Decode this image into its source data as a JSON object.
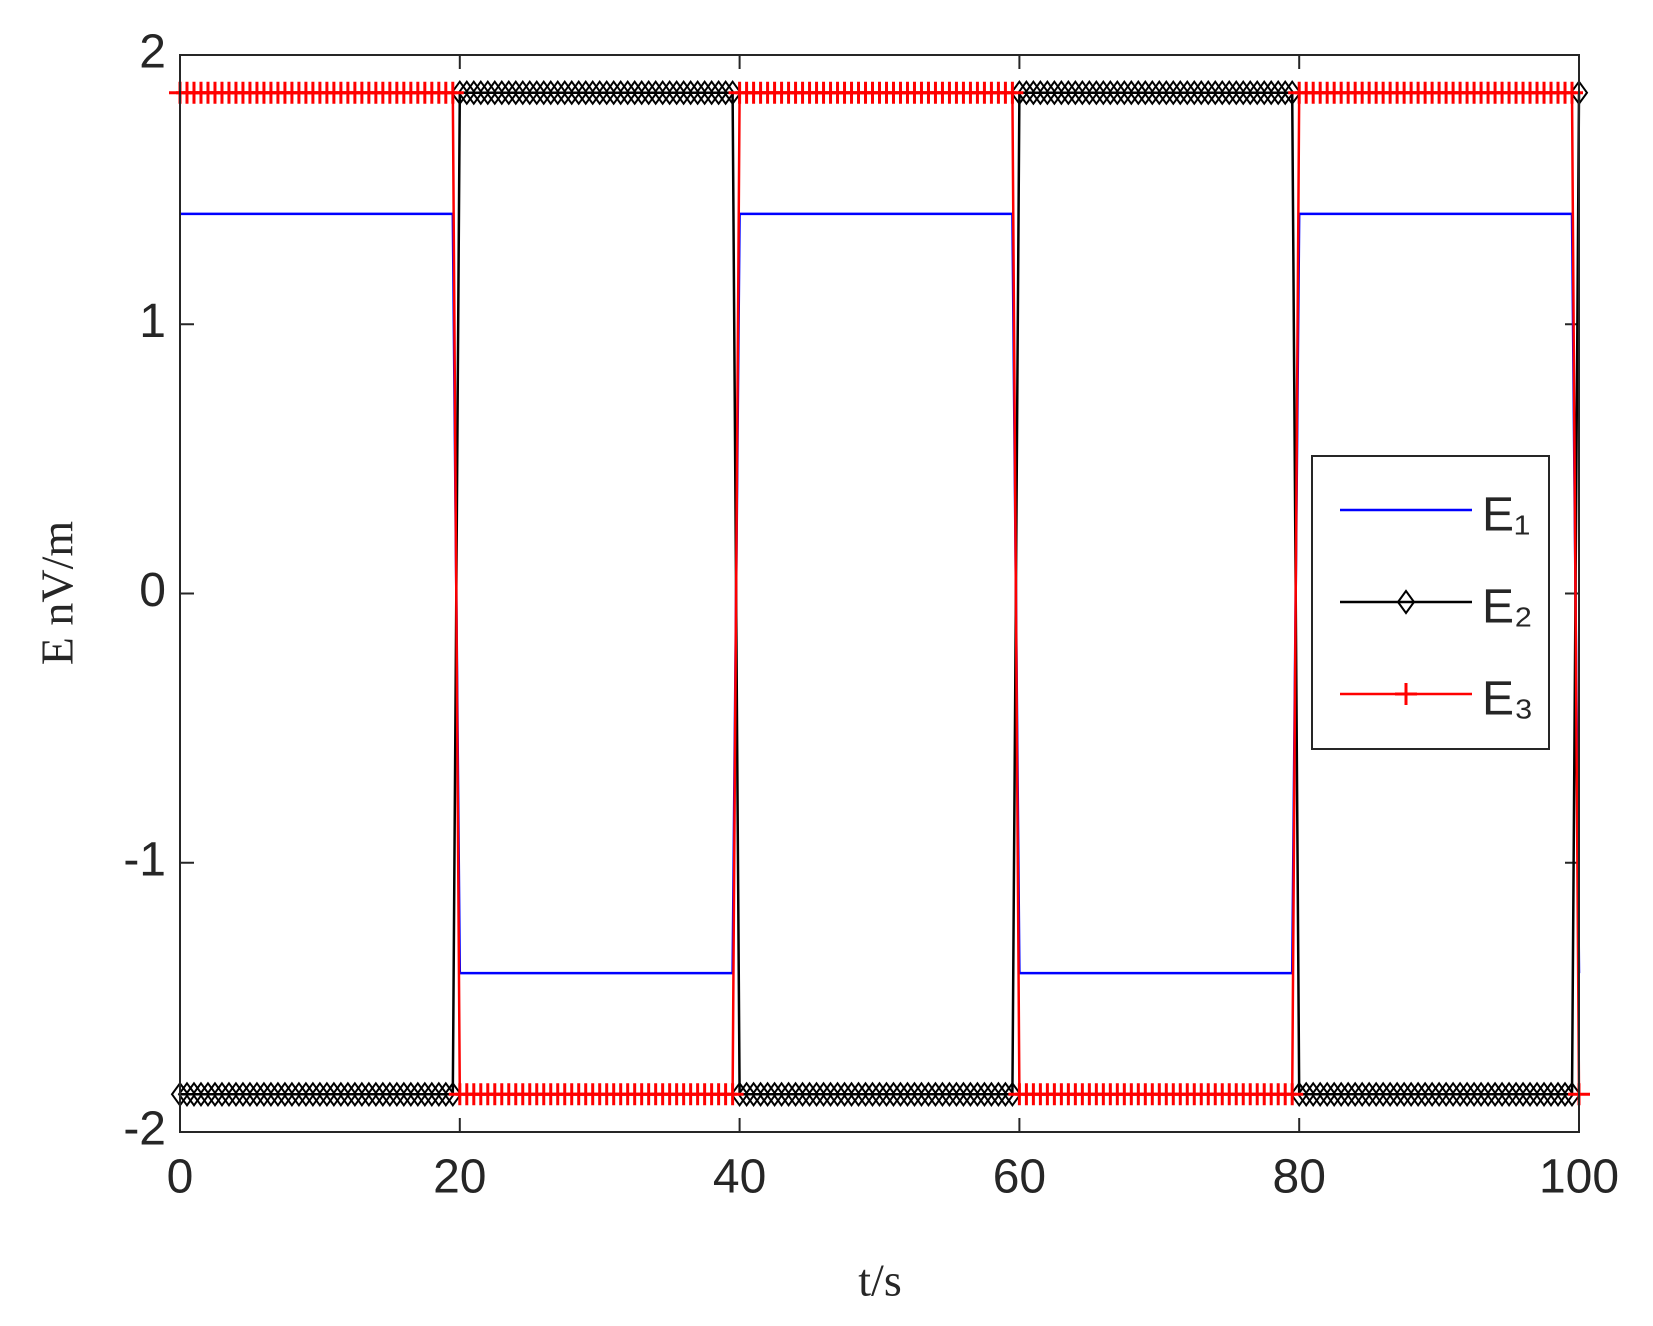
{
  "chart_data": {
    "type": "line",
    "xlabel": "t/s",
    "ylabel": "E nV/m",
    "xlim": [
      0,
      100
    ],
    "ylim": [
      -2,
      2
    ],
    "xticks": [
      0,
      20,
      40,
      60,
      80,
      100
    ],
    "yticks": [
      -2,
      -1,
      0,
      1,
      2
    ],
    "grid": false,
    "legend": "right",
    "x": [
      0,
      0.5,
      1,
      1.5,
      2,
      2.5,
      3,
      3.5,
      4,
      4.5,
      5,
      5.5,
      6,
      6.5,
      7,
      7.5,
      8,
      8.5,
      9,
      9.5,
      10,
      10.5,
      11,
      11.5,
      12,
      12.5,
      13,
      13.5,
      14,
      14.5,
      15,
      15.5,
      16,
      16.5,
      17,
      17.5,
      18,
      18.5,
      19,
      19.5,
      20,
      20.5,
      21,
      21.5,
      22,
      22.5,
      23,
      23.5,
      24,
      24.5,
      25,
      25.5,
      26,
      26.5,
      27,
      27.5,
      28,
      28.5,
      29,
      29.5,
      30,
      30.5,
      31,
      31.5,
      32,
      32.5,
      33,
      33.5,
      34,
      34.5,
      35,
      35.5,
      36,
      36.5,
      37,
      37.5,
      38,
      38.5,
      39,
      39.5,
      40,
      40.5,
      41,
      41.5,
      42,
      42.5,
      43,
      43.5,
      44,
      44.5,
      45,
      45.5,
      46,
      46.5,
      47,
      47.5,
      48,
      48.5,
      49,
      49.5,
      50,
      50.5,
      51,
      51.5,
      52,
      52.5,
      53,
      53.5,
      54,
      54.5,
      55,
      55.5,
      56,
      56.5,
      57,
      57.5,
      58,
      58.5,
      59,
      59.5,
      60,
      60.5,
      61,
      61.5,
      62,
      62.5,
      63,
      63.5,
      64,
      64.5,
      65,
      65.5,
      66,
      66.5,
      67,
      67.5,
      68,
      68.5,
      69,
      69.5,
      70,
      70.5,
      71,
      71.5,
      72,
      72.5,
      73,
      73.5,
      74,
      74.5,
      75,
      75.5,
      76,
      76.5,
      77,
      77.5,
      78,
      78.5,
      79,
      79.5,
      80,
      80.5,
      81,
      81.5,
      82,
      82.5,
      83,
      83.5,
      84,
      84.5,
      85,
      85.5,
      86,
      86.5,
      87,
      87.5,
      88,
      88.5,
      89,
      89.5,
      90,
      90.5,
      91,
      91.5,
      92,
      92.5,
      93,
      93.5,
      94,
      94.5,
      95,
      95.5,
      96,
      96.5,
      97,
      97.5,
      98,
      98.5,
      99,
      99.5,
      100
    ],
    "series": [
      {
        "name": "E₁",
        "color": "#0000ff",
        "marker": "none",
        "values": [
          1.41,
          1.41,
          1.41,
          1.41,
          1.41,
          1.41,
          1.41,
          1.41,
          1.41,
          1.41,
          1.41,
          1.41,
          1.41,
          1.41,
          1.41,
          1.41,
          1.41,
          1.41,
          1.41,
          1.41,
          1.41,
          1.41,
          1.41,
          1.41,
          1.41,
          1.41,
          1.41,
          1.41,
          1.41,
          1.41,
          1.41,
          1.41,
          1.41,
          1.41,
          1.41,
          1.41,
          1.41,
          1.41,
          1.41,
          1.41,
          -1.41,
          -1.41,
          -1.41,
          -1.41,
          -1.41,
          -1.41,
          -1.41,
          -1.41,
          -1.41,
          -1.41,
          -1.41,
          -1.41,
          -1.41,
          -1.41,
          -1.41,
          -1.41,
          -1.41,
          -1.41,
          -1.41,
          -1.41,
          -1.41,
          -1.41,
          -1.41,
          -1.41,
          -1.41,
          -1.41,
          -1.41,
          -1.41,
          -1.41,
          -1.41,
          -1.41,
          -1.41,
          -1.41,
          -1.41,
          -1.41,
          -1.41,
          -1.41,
          -1.41,
          -1.41,
          -1.41,
          1.41,
          1.41,
          1.41,
          1.41,
          1.41,
          1.41,
          1.41,
          1.41,
          1.41,
          1.41,
          1.41,
          1.41,
          1.41,
          1.41,
          1.41,
          1.41,
          1.41,
          1.41,
          1.41,
          1.41,
          1.41,
          1.41,
          1.41,
          1.41,
          1.41,
          1.41,
          1.41,
          1.41,
          1.41,
          1.41,
          1.41,
          1.41,
          1.41,
          1.41,
          1.41,
          1.41,
          1.41,
          1.41,
          1.41,
          1.41,
          -1.41,
          -1.41,
          -1.41,
          -1.41,
          -1.41,
          -1.41,
          -1.41,
          -1.41,
          -1.41,
          -1.41,
          -1.41,
          -1.41,
          -1.41,
          -1.41,
          -1.41,
          -1.41,
          -1.41,
          -1.41,
          -1.41,
          -1.41,
          -1.41,
          -1.41,
          -1.41,
          -1.41,
          -1.41,
          -1.41,
          -1.41,
          -1.41,
          -1.41,
          -1.41,
          -1.41,
          -1.41,
          -1.41,
          -1.41,
          -1.41,
          -1.41,
          -1.41,
          -1.41,
          -1.41,
          -1.41,
          1.41,
          1.41,
          1.41,
          1.41,
          1.41,
          1.41,
          1.41,
          1.41,
          1.41,
          1.41,
          1.41,
          1.41,
          1.41,
          1.41,
          1.41,
          1.41,
          1.41,
          1.41,
          1.41,
          1.41,
          1.41,
          1.41,
          1.41,
          1.41,
          1.41,
          1.41,
          1.41,
          1.41,
          1.41,
          1.41,
          1.41,
          1.41,
          1.41,
          1.41,
          1.41,
          1.41,
          1.41,
          1.41,
          1.41,
          1.41,
          -1.41
        ]
      },
      {
        "name": "E₂",
        "color": "#000000",
        "marker": "diamond",
        "values": [
          -1.86,
          -1.86,
          -1.86,
          -1.86,
          -1.86,
          -1.86,
          -1.86,
          -1.86,
          -1.86,
          -1.86,
          -1.86,
          -1.86,
          -1.86,
          -1.86,
          -1.86,
          -1.86,
          -1.86,
          -1.86,
          -1.86,
          -1.86,
          -1.86,
          -1.86,
          -1.86,
          -1.86,
          -1.86,
          -1.86,
          -1.86,
          -1.86,
          -1.86,
          -1.86,
          -1.86,
          -1.86,
          -1.86,
          -1.86,
          -1.86,
          -1.86,
          -1.86,
          -1.86,
          -1.86,
          -1.86,
          1.86,
          1.86,
          1.86,
          1.86,
          1.86,
          1.86,
          1.86,
          1.86,
          1.86,
          1.86,
          1.86,
          1.86,
          1.86,
          1.86,
          1.86,
          1.86,
          1.86,
          1.86,
          1.86,
          1.86,
          1.86,
          1.86,
          1.86,
          1.86,
          1.86,
          1.86,
          1.86,
          1.86,
          1.86,
          1.86,
          1.86,
          1.86,
          1.86,
          1.86,
          1.86,
          1.86,
          1.86,
          1.86,
          1.86,
          1.86,
          -1.86,
          -1.86,
          -1.86,
          -1.86,
          -1.86,
          -1.86,
          -1.86,
          -1.86,
          -1.86,
          -1.86,
          -1.86,
          -1.86,
          -1.86,
          -1.86,
          -1.86,
          -1.86,
          -1.86,
          -1.86,
          -1.86,
          -1.86,
          -1.86,
          -1.86,
          -1.86,
          -1.86,
          -1.86,
          -1.86,
          -1.86,
          -1.86,
          -1.86,
          -1.86,
          -1.86,
          -1.86,
          -1.86,
          -1.86,
          -1.86,
          -1.86,
          -1.86,
          -1.86,
          -1.86,
          -1.86,
          1.86,
          1.86,
          1.86,
          1.86,
          1.86,
          1.86,
          1.86,
          1.86,
          1.86,
          1.86,
          1.86,
          1.86,
          1.86,
          1.86,
          1.86,
          1.86,
          1.86,
          1.86,
          1.86,
          1.86,
          1.86,
          1.86,
          1.86,
          1.86,
          1.86,
          1.86,
          1.86,
          1.86,
          1.86,
          1.86,
          1.86,
          1.86,
          1.86,
          1.86,
          1.86,
          1.86,
          1.86,
          1.86,
          1.86,
          1.86,
          -1.86,
          -1.86,
          -1.86,
          -1.86,
          -1.86,
          -1.86,
          -1.86,
          -1.86,
          -1.86,
          -1.86,
          -1.86,
          -1.86,
          -1.86,
          -1.86,
          -1.86,
          -1.86,
          -1.86,
          -1.86,
          -1.86,
          -1.86,
          -1.86,
          -1.86,
          -1.86,
          -1.86,
          -1.86,
          -1.86,
          -1.86,
          -1.86,
          -1.86,
          -1.86,
          -1.86,
          -1.86,
          -1.86,
          -1.86,
          -1.86,
          -1.86,
          -1.86,
          -1.86,
          -1.86,
          -1.86,
          1.86
        ]
      },
      {
        "name": "E₃",
        "color": "#ff0000",
        "marker": "plus",
        "values": [
          1.86,
          1.86,
          1.86,
          1.86,
          1.86,
          1.86,
          1.86,
          1.86,
          1.86,
          1.86,
          1.86,
          1.86,
          1.86,
          1.86,
          1.86,
          1.86,
          1.86,
          1.86,
          1.86,
          1.86,
          1.86,
          1.86,
          1.86,
          1.86,
          1.86,
          1.86,
          1.86,
          1.86,
          1.86,
          1.86,
          1.86,
          1.86,
          1.86,
          1.86,
          1.86,
          1.86,
          1.86,
          1.86,
          1.86,
          1.86,
          -1.86,
          -1.86,
          -1.86,
          -1.86,
          -1.86,
          -1.86,
          -1.86,
          -1.86,
          -1.86,
          -1.86,
          -1.86,
          -1.86,
          -1.86,
          -1.86,
          -1.86,
          -1.86,
          -1.86,
          -1.86,
          -1.86,
          -1.86,
          -1.86,
          -1.86,
          -1.86,
          -1.86,
          -1.86,
          -1.86,
          -1.86,
          -1.86,
          -1.86,
          -1.86,
          -1.86,
          -1.86,
          -1.86,
          -1.86,
          -1.86,
          -1.86,
          -1.86,
          -1.86,
          -1.86,
          -1.86,
          1.86,
          1.86,
          1.86,
          1.86,
          1.86,
          1.86,
          1.86,
          1.86,
          1.86,
          1.86,
          1.86,
          1.86,
          1.86,
          1.86,
          1.86,
          1.86,
          1.86,
          1.86,
          1.86,
          1.86,
          1.86,
          1.86,
          1.86,
          1.86,
          1.86,
          1.86,
          1.86,
          1.86,
          1.86,
          1.86,
          1.86,
          1.86,
          1.86,
          1.86,
          1.86,
          1.86,
          1.86,
          1.86,
          1.86,
          1.86,
          -1.86,
          -1.86,
          -1.86,
          -1.86,
          -1.86,
          -1.86,
          -1.86,
          -1.86,
          -1.86,
          -1.86,
          -1.86,
          -1.86,
          -1.86,
          -1.86,
          -1.86,
          -1.86,
          -1.86,
          -1.86,
          -1.86,
          -1.86,
          -1.86,
          -1.86,
          -1.86,
          -1.86,
          -1.86,
          -1.86,
          -1.86,
          -1.86,
          -1.86,
          -1.86,
          -1.86,
          -1.86,
          -1.86,
          -1.86,
          -1.86,
          -1.86,
          -1.86,
          -1.86,
          -1.86,
          -1.86,
          1.86,
          1.86,
          1.86,
          1.86,
          1.86,
          1.86,
          1.86,
          1.86,
          1.86,
          1.86,
          1.86,
          1.86,
          1.86,
          1.86,
          1.86,
          1.86,
          1.86,
          1.86,
          1.86,
          1.86,
          1.86,
          1.86,
          1.86,
          1.86,
          1.86,
          1.86,
          1.86,
          1.86,
          1.86,
          1.86,
          1.86,
          1.86,
          1.86,
          1.86,
          1.86,
          1.86,
          1.86,
          1.86,
          1.86,
          1.86,
          -1.86
        ]
      }
    ]
  }
}
